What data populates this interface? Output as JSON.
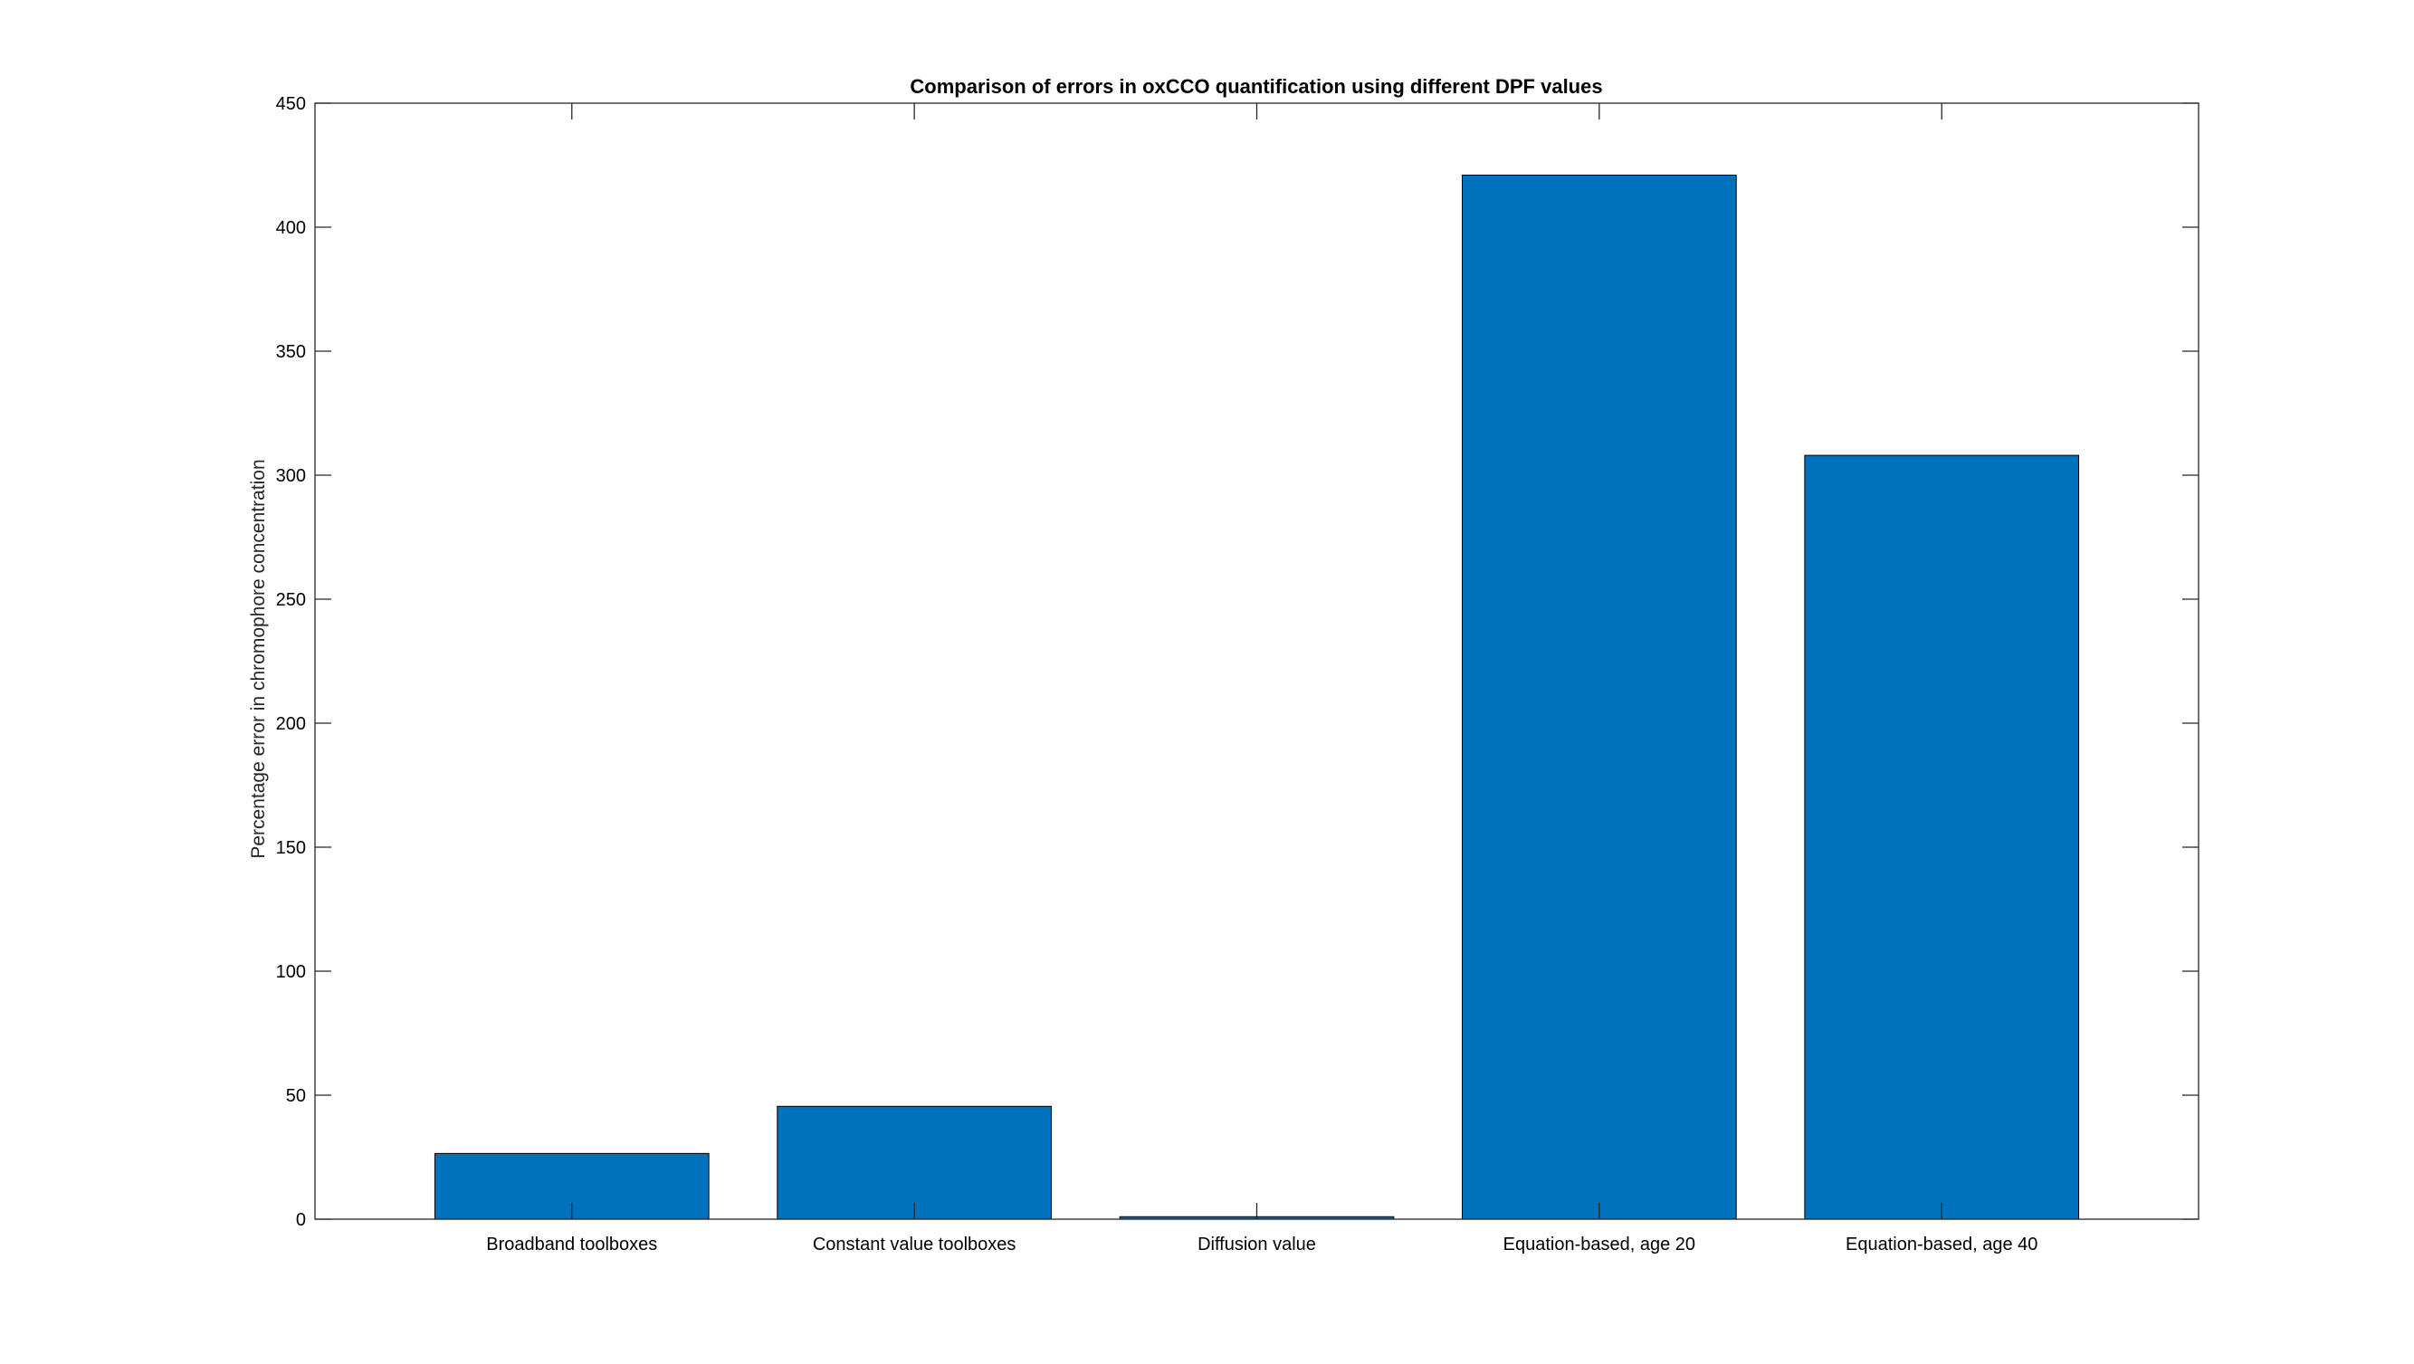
{
  "chart_data": {
    "type": "bar",
    "title": "Comparison of errors in oxCCO quantification using different DPF values",
    "xlabel": "",
    "ylabel": "Percentage error in chromophore concentration",
    "categories": [
      "Broadband toolboxes",
      "Constant value toolboxes",
      "Diffusion value",
      "Equation-based, age 20",
      "Equation-based, age 40"
    ],
    "values": [
      26.5,
      45.5,
      1,
      421,
      308
    ],
    "ylim": [
      0,
      450
    ],
    "yticks": [
      0,
      50,
      100,
      150,
      200,
      250,
      300,
      350,
      400,
      450
    ],
    "grid": false,
    "legend": null,
    "colors": {
      "bar_fill": "#0072BD",
      "bar_edge": "#000000",
      "axis": "#262626",
      "text": "#000000"
    }
  }
}
